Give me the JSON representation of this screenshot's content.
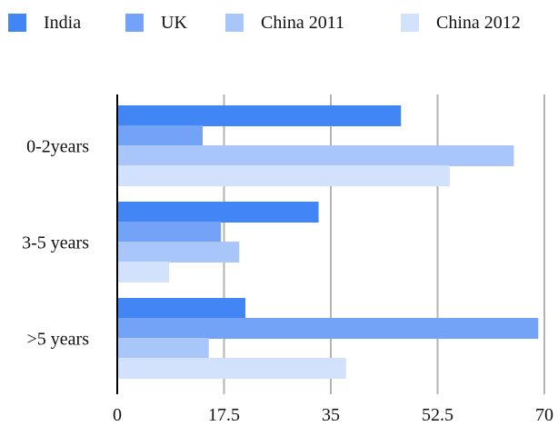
{
  "chart_data": {
    "type": "bar",
    "orientation": "horizontal",
    "categories": [
      "0-2years",
      "3-5 years",
      ">5 years"
    ],
    "series": [
      {
        "name": "India",
        "color": "#4285f4",
        "values": [
          46.5,
          33,
          21
        ]
      },
      {
        "name": "UK",
        "color": "#73a3f7",
        "values": [
          14,
          17,
          69
        ]
      },
      {
        "name": "China 2011",
        "color": "#a8c6fa",
        "values": [
          65,
          20,
          15
        ]
      },
      {
        "name": "China 2012",
        "color": "#d3e2fc",
        "values": [
          54.5,
          8.5,
          37.5
        ]
      }
    ],
    "xticks": [
      "0",
      "17.5",
      "35",
      "52.5",
      "70"
    ],
    "xlim": [
      0,
      70
    ],
    "grid": true,
    "legend": "top"
  }
}
